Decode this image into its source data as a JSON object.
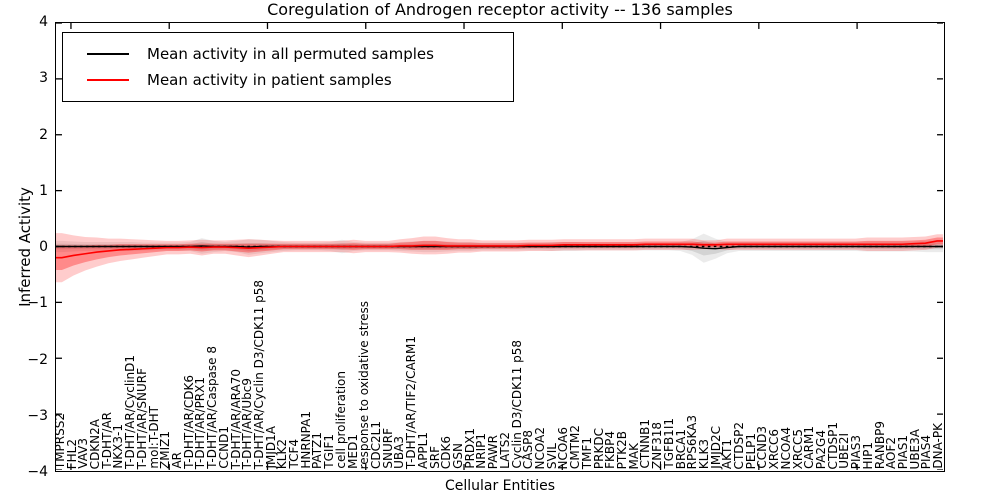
{
  "title": "Coregulation of Androgen receptor activity -- 136 samples",
  "axes": {
    "ylabel": "Inferred Activity",
    "xlabel": "Cellular Entities",
    "yticks": [
      "4",
      "3",
      "2",
      "1",
      "0",
      "−1",
      "−2",
      "−3",
      "−4"
    ]
  },
  "chart_data": {
    "type": "line",
    "title": "Coregulation of Androgen receptor activity -- 136 samples",
    "xlabel": "Cellular Entities",
    "ylabel": "Inferred Activity",
    "ylim": [
      -4,
      4
    ],
    "grid": false,
    "legend_position": "upper left",
    "zero_line": {
      "style": "dashed",
      "color": "#000000",
      "y": 0
    },
    "categories": [
      "TMPRSS2",
      "FHL2",
      "VAV3",
      "CDKN2A",
      "T-DHT/AR",
      "NKX3-1",
      "T-DHT/AR/CyclinD1",
      "T-DHT/AR/SNURF",
      "mol:T-DHT",
      "ZMIZ1",
      "AR",
      "T-DHT/AR/CDK6",
      "T-DHT/AR/PRX1",
      "T-DHT/AR/Caspase 8",
      "CCND1",
      "T-DHT/AR/ARA70",
      "T-DHT/AR/Ubc9",
      "T-DHT/AR/Cyclin D3/CDK11 p58",
      "JMJD1A",
      "KLK2",
      "TCF4",
      "HNRNPA1",
      "PATZ1",
      "TGIF1",
      "cell proliferation",
      "MED1",
      "response to oxidative stress",
      "CDC2L1",
      "SNURF",
      "UBA3",
      "T-DHT/AR/TIF2/CARM1",
      "APPL1",
      "SRF",
      "CDK6",
      "GSN",
      "PRDX1",
      "NRIP1",
      "PAWR",
      "LATS2",
      "Cyclin D3/CDK11 p58",
      "CASP8",
      "NCOA2",
      "SVIL",
      "NCOA6",
      "CMTM2",
      "TMF1",
      "PRKDC",
      "FKBP4",
      "PTK2B",
      "MAK",
      "CTNNB1",
      "ZNF318",
      "TGFB1I1",
      "BRCA1",
      "RPS6KA3",
      "KLK3",
      "JMJD2C",
      "AKT1",
      "CTDSP2",
      "PELP1",
      "CCND3",
      "XRCC6",
      "NCOA4",
      "XRCC5",
      "CARM1",
      "PA2G4",
      "CTDSP1",
      "UBE2I",
      "PIAS3",
      "HIP1",
      "RANBP9",
      "AOF2",
      "PIAS1",
      "UBE3A",
      "PIAS4",
      "DNA-PK"
    ],
    "series": [
      {
        "name": "Mean activity in all permuted samples",
        "color": "#000000",
        "style": "solid",
        "values": [
          0,
          0,
          0,
          0,
          0,
          0,
          0,
          0,
          0,
          0,
          0,
          0,
          0.01,
          0,
          0,
          0,
          -0.01,
          0,
          0,
          0,
          0,
          0,
          0,
          0,
          0,
          0,
          0,
          0,
          0,
          0,
          0,
          0,
          0,
          0,
          0,
          0,
          0,
          0,
          0,
          0,
          0,
          0,
          0,
          0,
          0,
          0,
          0,
          0,
          0,
          0,
          0,
          0,
          0,
          0,
          -0.01,
          -0.03,
          -0.04,
          -0.02,
          0,
          0,
          0,
          0,
          0,
          0,
          0,
          0,
          0,
          0,
          0,
          0,
          0,
          0,
          0,
          0,
          0,
          0
        ],
        "band_sd": [
          0.05,
          0.045,
          0.04,
          0.04,
          0.04,
          0.04,
          0.04,
          0.035,
          0.035,
          0.035,
          0.035,
          0.04,
          0.07,
          0.05,
          0.04,
          0.05,
          0.07,
          0.06,
          0.05,
          0.04,
          0.035,
          0.035,
          0.035,
          0.04,
          0.06,
          0.04,
          0.035,
          0.035,
          0.035,
          0.04,
          0.045,
          0.05,
          0.05,
          0.045,
          0.04,
          0.04,
          0.035,
          0.035,
          0.035,
          0.035,
          0.035,
          0.035,
          0.04,
          0.04,
          0.04,
          0.035,
          0.035,
          0.035,
          0.035,
          0.035,
          0.035,
          0.035,
          0.035,
          0.04,
          0.07,
          0.13,
          0.09,
          0.05,
          0.04,
          0.04,
          0.04,
          0.04,
          0.04,
          0.04,
          0.04,
          0.04,
          0.04,
          0.04,
          0.04,
          0.045,
          0.045,
          0.045,
          0.045,
          0.045,
          0.05,
          0.05
        ]
      },
      {
        "name": "Mean activity in patient samples",
        "color": "#ff0000",
        "style": "solid",
        "values": [
          -0.2,
          -0.16,
          -0.13,
          -0.1,
          -0.08,
          -0.06,
          -0.05,
          -0.04,
          -0.03,
          -0.02,
          -0.02,
          -0.01,
          -0.02,
          -0.01,
          -0.01,
          -0.02,
          -0.03,
          -0.02,
          -0.01,
          0,
          0,
          0,
          0,
          0,
          0,
          0,
          0,
          0,
          0,
          0.01,
          0.01,
          0.02,
          0.02,
          0.01,
          0.01,
          0.01,
          0.01,
          0.01,
          0.01,
          0.01,
          0.02,
          0.02,
          0.02,
          0.03,
          0.03,
          0.03,
          0.03,
          0.03,
          0.03,
          0.03,
          0.04,
          0.04,
          0.04,
          0.04,
          0.04,
          0.03,
          0.03,
          0.04,
          0.04,
          0.04,
          0.04,
          0.04,
          0.04,
          0.04,
          0.04,
          0.04,
          0.04,
          0.04,
          0.04,
          0.04,
          0.04,
          0.04,
          0.04,
          0.05,
          0.06,
          0.1
        ],
        "band_sd": [
          0.22,
          0.18,
          0.15,
          0.13,
          0.11,
          0.1,
          0.09,
          0.08,
          0.07,
          0.06,
          0.06,
          0.06,
          0.07,
          0.06,
          0.06,
          0.07,
          0.08,
          0.07,
          0.06,
          0.05,
          0.05,
          0.05,
          0.05,
          0.05,
          0.05,
          0.06,
          0.05,
          0.05,
          0.05,
          0.06,
          0.07,
          0.08,
          0.08,
          0.07,
          0.06,
          0.06,
          0.05,
          0.05,
          0.05,
          0.05,
          0.05,
          0.05,
          0.05,
          0.05,
          0.05,
          0.05,
          0.05,
          0.05,
          0.05,
          0.05,
          0.05,
          0.05,
          0.05,
          0.05,
          0.05,
          0.04,
          0.04,
          0.05,
          0.05,
          0.05,
          0.05,
          0.05,
          0.05,
          0.05,
          0.05,
          0.05,
          0.05,
          0.05,
          0.05,
          0.06,
          0.06,
          0.06,
          0.06,
          0.06,
          0.06,
          0.06
        ]
      }
    ]
  }
}
